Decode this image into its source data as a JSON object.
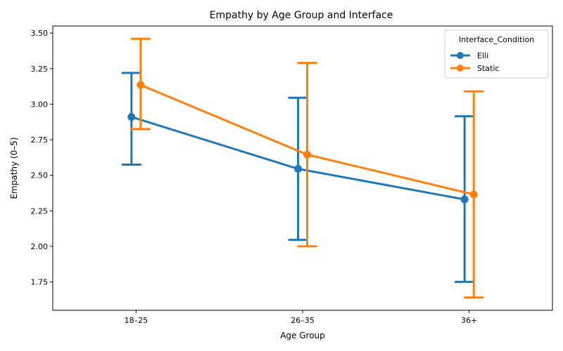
{
  "chart_data": {
    "type": "line",
    "title": "Empathy by Age Group and Interface",
    "xlabel": "Age Group",
    "ylabel": "Empathy (0–5)",
    "categories": [
      "18–25",
      "26–35",
      "36+"
    ],
    "ylim": [
      1.55,
      3.55
    ],
    "yticks": [
      1.75,
      2.0,
      2.25,
      2.5,
      2.75,
      3.0,
      3.25,
      3.5
    ],
    "ytick_labels": [
      "1.75",
      "2.00",
      "2.25",
      "2.50",
      "2.75",
      "3.00",
      "3.25",
      "3.50"
    ],
    "grid": false,
    "legend": {
      "title": "Interface_Condition",
      "placement": "top-right"
    },
    "series": [
      {
        "name": "Elli",
        "color": "#1f77b4",
        "values": [
          2.91,
          2.545,
          2.33
        ],
        "ci_low": [
          2.575,
          2.045,
          1.75
        ],
        "ci_high": [
          3.22,
          3.045,
          2.915
        ]
      },
      {
        "name": "Static",
        "color": "#ff7f0e",
        "values": [
          3.135,
          2.645,
          2.365
        ],
        "ci_low": [
          2.825,
          2.0,
          1.64
        ],
        "ci_high": [
          3.46,
          3.29,
          3.09
        ]
      }
    ]
  }
}
